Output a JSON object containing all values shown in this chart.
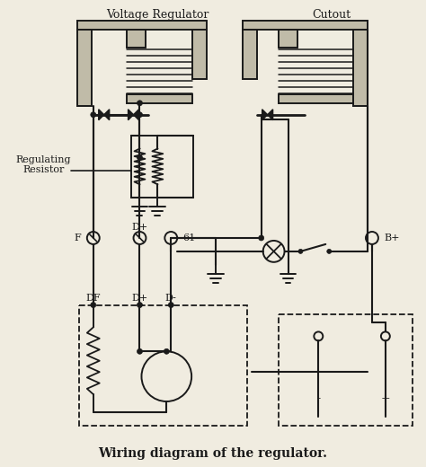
{
  "bg_color": "#f0ece0",
  "line_color": "#1a1a1a",
  "hatch_color": "#888880",
  "fill_color": "#d8d0b8",
  "title": "Wiring diagram of the regulator.",
  "label_vr": "Voltage Regulator",
  "label_co": "Cutout",
  "label_rr": "Regulating\nResistor",
  "label_F": "F",
  "label_D1": "D+",
  "label_61": "61",
  "label_Bplus": "B+",
  "label_DF": "DF",
  "label_D2": "D+",
  "label_D3": "D-",
  "label_minus": "-",
  "label_plus": "+"
}
